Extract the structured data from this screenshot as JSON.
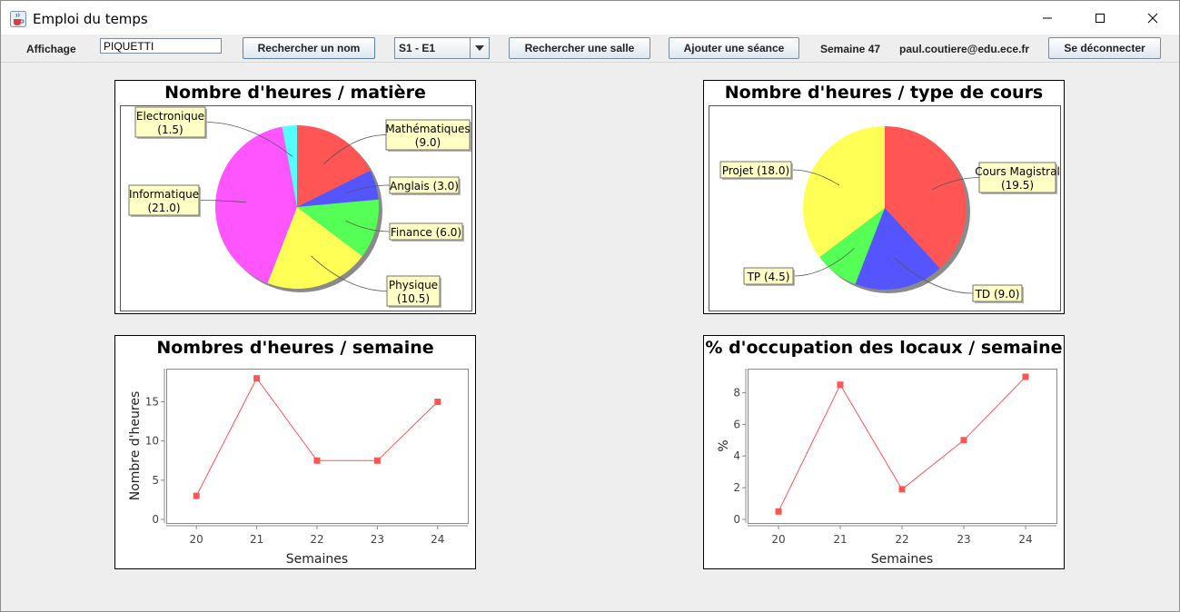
{
  "window": {
    "title": "Emploi du temps"
  },
  "toolbar": {
    "display_label": "Affichage",
    "name_value": "PIQUETTI",
    "search_name_label": "Rechercher un nom",
    "group_select_value": "S1 - E1",
    "search_room_label": "Rechercher une salle",
    "add_session_label": "Ajouter une séance",
    "week_label": "Semaine 47",
    "user_email": "paul.coutiere@edu.ece.fr",
    "logout_label": "Se déconnecter"
  },
  "icons": {
    "app": "java-coffee-icon",
    "minimize": "minimize-icon",
    "maximize": "maximize-icon",
    "close": "close-icon",
    "dropdown": "chevron-down-icon"
  },
  "colors": {
    "red": "#ff5555",
    "blue": "#5555ff",
    "green": "#55ff55",
    "yellow": "#ffff55",
    "magenta": "#ff55ff",
    "cyan": "#55ffff",
    "label_bg": "#ffffc6"
  },
  "chart_data": [
    {
      "type": "pie",
      "title": "Nombre d'heures / matière",
      "slices": [
        {
          "name": "Mathématiques",
          "value": 9.0,
          "label": "(9.0)",
          "color": "#ff5555"
        },
        {
          "name": "Anglais",
          "value": 3.0,
          "label": "(3.0)",
          "color": "#5555ff"
        },
        {
          "name": "Finance",
          "value": 6.0,
          "label": "(6.0)",
          "color": "#55ff55"
        },
        {
          "name": "Physique",
          "value": 10.5,
          "label": "(10.5)",
          "color": "#ffff55"
        },
        {
          "name": "Informatique",
          "value": 21.0,
          "label": "(21.0)",
          "color": "#ff55ff"
        },
        {
          "name": "Electronique",
          "value": 1.5,
          "label": "(1.5)",
          "color": "#55ffff"
        }
      ]
    },
    {
      "type": "pie",
      "title": "Nombre d'heures / type de cours",
      "slices": [
        {
          "name": "Cours Magistral",
          "value": 19.5,
          "label": "(19.5)",
          "color": "#ff5555"
        },
        {
          "name": "TD",
          "value": 9.0,
          "label": "(9.0)",
          "color": "#5555ff"
        },
        {
          "name": "TP",
          "value": 4.5,
          "label": "(4.5)",
          "color": "#55ff55"
        },
        {
          "name": "Projet",
          "value": 18.0,
          "label": "(18.0)",
          "color": "#ffff55"
        }
      ]
    },
    {
      "type": "line",
      "title": "Nombres d'heures / semaine",
      "xlabel": "Semaines",
      "ylabel": "Nombre d'heures",
      "categories": [
        "20",
        "21",
        "22",
        "23",
        "24"
      ],
      "values": [
        3,
        18,
        7.5,
        7.5,
        15
      ],
      "ylim": [
        0,
        19
      ],
      "yticks": [
        "0",
        "5",
        "10",
        "15"
      ],
      "grid": false,
      "color": "#ff5555"
    },
    {
      "type": "line",
      "title": "% d'occupation des locaux / semaine",
      "xlabel": "Semaines",
      "ylabel": "%",
      "categories": [
        "20",
        "21",
        "22",
        "23",
        "24"
      ],
      "values": [
        0.5,
        8.5,
        1.9,
        5.0,
        9.0
      ],
      "ylim": [
        0,
        9.4
      ],
      "yticks": [
        "0",
        "2",
        "4",
        "6",
        "8"
      ],
      "grid": false,
      "color": "#ff5555"
    }
  ]
}
